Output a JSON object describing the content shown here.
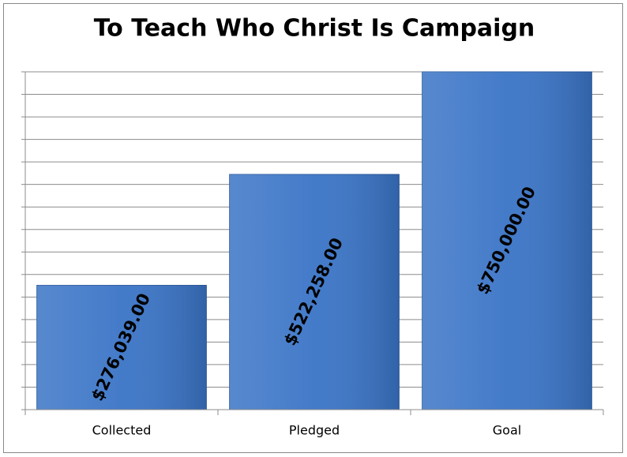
{
  "chart_data": {
    "type": "bar",
    "title": "To Teach Who Christ Is Campaign",
    "categories": [
      "Collected",
      "Pledged",
      "Goal"
    ],
    "values": [
      276039,
      522258,
      750000
    ],
    "value_labels": [
      "$276,039.00",
      "$522,258.00",
      "$750,000.00"
    ],
    "color": "#3a74c6",
    "ylim": [
      0,
      750000
    ],
    "yticks": [
      0,
      50000,
      100000,
      150000,
      200000,
      250000,
      300000,
      350000,
      400000,
      450000,
      500000,
      550000,
      600000,
      650000,
      700000,
      750000
    ],
    "grid": true
  }
}
